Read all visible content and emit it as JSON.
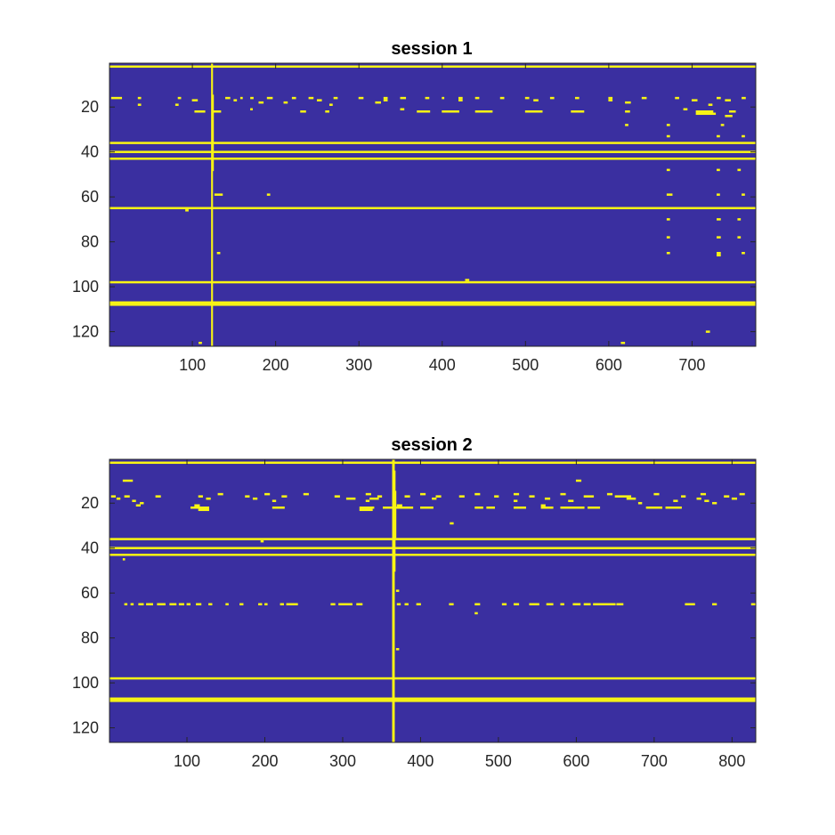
{
  "colors": {
    "background": "#3a2fa0",
    "active": "#f9f514",
    "axis": "#262626",
    "figure": "#ffffff"
  },
  "chart_data": [
    {
      "type": "heatmap",
      "title": "session 1",
      "xlabel": "",
      "ylabel": "",
      "xlim": [
        1,
        776
      ],
      "ylim": [
        1,
        126
      ],
      "y_reversed": true,
      "grid": false,
      "xticks": [
        100,
        200,
        300,
        400,
        500,
        600,
        700
      ],
      "yticks": [
        20,
        40,
        60,
        80,
        100,
        120
      ],
      "colormap": [
        "#3a2fa0",
        "#f9f514"
      ],
      "rows_full": [
        2,
        36,
        40,
        43,
        65,
        98,
        107,
        108
      ],
      "cols_full": [
        123,
        124
      ],
      "col_spans": [
        {
          "x": 125,
          "y": [
            15,
            48
          ]
        }
      ],
      "row_segments": [
        {
          "y": 16,
          "x": [
            [
              3,
              15
            ],
            [
              35,
              38
            ],
            [
              83,
              86
            ],
            [
              140,
              145
            ],
            [
              158,
              160
            ],
            [
              170,
              173
            ],
            [
              190,
              196
            ],
            [
              220,
              224
            ],
            [
              240,
              245
            ],
            [
              270,
              274
            ],
            [
              300,
              305
            ],
            [
              330,
              334
            ],
            [
              350,
              356
            ],
            [
              380,
              384
            ],
            [
              400,
              402
            ],
            [
              420,
              424
            ],
            [
              440,
              444
            ],
            [
              470,
              474
            ],
            [
              500,
              504
            ],
            [
              530,
              534
            ],
            [
              560,
              564
            ],
            [
              600,
              604
            ],
            [
              640,
              645
            ],
            [
              680,
              684
            ],
            [
              730,
              734
            ],
            [
              760,
              764
            ]
          ]
        },
        {
          "y": 17,
          "x": [
            [
              100,
              106
            ],
            [
              150,
              153
            ],
            [
              250,
              255
            ],
            [
              330,
              334
            ],
            [
              420,
              424
            ],
            [
              510,
              515
            ],
            [
              600,
              604
            ],
            [
              700,
              706
            ],
            [
              740,
              746
            ]
          ]
        },
        {
          "y": 18,
          "x": [
            [
              180,
              185
            ],
            [
              210,
              214
            ],
            [
              320,
              326
            ],
            [
              620,
              626
            ]
          ]
        },
        {
          "y": 19,
          "x": [
            [
              35,
              38
            ],
            [
              80,
              83
            ],
            [
              265,
              268
            ],
            [
              720,
              724
            ]
          ]
        },
        {
          "y": 21,
          "x": [
            [
              170,
              172
            ],
            [
              350,
              354
            ],
            [
              690,
              694
            ]
          ]
        },
        {
          "y": 22,
          "x": [
            [
              103,
              115
            ],
            [
              126,
              134
            ],
            [
              230,
              236
            ],
            [
              260,
              264
            ],
            [
              370,
              385
            ],
            [
              400,
              420
            ],
            [
              440,
              460
            ],
            [
              500,
              520
            ],
            [
              555,
              570
            ],
            [
              620,
              625
            ],
            [
              705,
              725
            ],
            [
              745,
              752
            ]
          ]
        },
        {
          "y": 23,
          "x": [
            [
              705,
              728
            ]
          ]
        },
        {
          "y": 24,
          "x": [
            [
              740,
              748
            ]
          ]
        },
        {
          "y": 28,
          "x": [
            [
              620,
              623
            ],
            [
              670,
              673
            ],
            [
              735,
              738
            ]
          ]
        },
        {
          "y": 33,
          "x": [
            [
              670,
              673
            ],
            [
              730,
              733
            ],
            [
              760,
              763
            ]
          ]
        },
        {
          "y": 48,
          "x": [
            [
              670,
              673
            ],
            [
              730,
              733
            ],
            [
              755,
              758
            ]
          ]
        },
        {
          "y": 59,
          "x": [
            [
              127,
              136
            ],
            [
              190,
              193
            ],
            [
              670,
              676
            ],
            [
              730,
              733
            ],
            [
              760,
              763
            ]
          ]
        },
        {
          "y": 66,
          "x": [
            [
              92,
              95
            ]
          ]
        },
        {
          "y": 70,
          "x": [
            [
              670,
              673
            ],
            [
              730,
              734
            ],
            [
              755,
              758
            ]
          ]
        },
        {
          "y": 78,
          "x": [
            [
              670,
              673
            ],
            [
              730,
              734
            ],
            [
              755,
              758
            ]
          ]
        },
        {
          "y": 85,
          "x": [
            [
              130,
              133
            ],
            [
              670,
              673
            ],
            [
              730,
              734
            ],
            [
              760,
              763
            ]
          ]
        },
        {
          "y": 86,
          "x": [
            [
              730,
              734
            ]
          ]
        },
        {
          "y": 97,
          "x": [
            [
              428,
              432
            ]
          ]
        },
        {
          "y": 120,
          "x": [
            [
              717,
              721
            ]
          ]
        },
        {
          "y": 125,
          "x": [
            [
              108,
              111
            ],
            [
              615,
              619
            ]
          ]
        }
      ]
    },
    {
      "type": "heatmap",
      "title": "session 2",
      "xlabel": "",
      "ylabel": "",
      "xlim": [
        1,
        830
      ],
      "ylim": [
        1,
        126
      ],
      "y_reversed": true,
      "grid": false,
      "xticks": [
        100,
        200,
        300,
        400,
        500,
        600,
        700,
        800
      ],
      "yticks": [
        20,
        40,
        60,
        80,
        100,
        120
      ],
      "colormap": [
        "#3a2fa0",
        "#f9f514"
      ],
      "rows_full": [
        2,
        36,
        40,
        43,
        98,
        107,
        108
      ],
      "cols_full": [
        364,
        365,
        366
      ],
      "col_spans": [
        {
          "x": 367,
          "y": [
            6,
            50
          ]
        },
        {
          "x": 368,
          "y": [
            15,
            35
          ]
        }
      ],
      "row_segments": [
        {
          "y": 10,
          "x": [
            [
              18,
              30
            ],
            [
              600,
              606
            ]
          ]
        },
        {
          "y": 16,
          "x": [
            [
              140,
              146
            ],
            [
              200,
              206
            ],
            [
              250,
              256
            ],
            [
              330,
              336
            ],
            [
              400,
              406
            ],
            [
              470,
              476
            ],
            [
              520,
              526
            ],
            [
              580,
              586
            ],
            [
              640,
              646
            ],
            [
              700,
              706
            ],
            [
              760,
              766
            ],
            [
              810,
              816
            ]
          ]
        },
        {
          "y": 17,
          "x": [
            [
              3,
              8
            ],
            [
              20,
              26
            ],
            [
              60,
              66
            ],
            [
              115,
              120
            ],
            [
              175,
              180
            ],
            [
              222,
              228
            ],
            [
              290,
              296
            ],
            [
              345,
              350
            ],
            [
              380,
              386
            ],
            [
              420,
              426
            ],
            [
              450,
              456
            ],
            [
              495,
              500
            ],
            [
              540,
              546
            ],
            [
              610,
              622
            ],
            [
              650,
              670
            ],
            [
              735,
              740
            ],
            [
              790,
              796
            ]
          ]
        },
        {
          "y": 18,
          "x": [
            [
              10,
              14
            ],
            [
              125,
              130
            ],
            [
              185,
              190
            ],
            [
              305,
              316
            ],
            [
              335,
              346
            ],
            [
              415,
              420
            ],
            [
              560,
              566
            ],
            [
              665,
              676
            ],
            [
              755,
              760
            ],
            [
              800,
              806
            ]
          ]
        },
        {
          "y": 19,
          "x": [
            [
              30,
              34
            ],
            [
              210,
              214
            ],
            [
              330,
              334
            ],
            [
              520,
              524
            ],
            [
              590,
              596
            ],
            [
              725,
              730
            ],
            [
              765,
              770
            ]
          ]
        },
        {
          "y": 20,
          "x": [
            [
              40,
              44
            ],
            [
              680,
              684
            ],
            [
              775,
              780
            ]
          ]
        },
        {
          "y": 21,
          "x": [
            [
              35,
              40
            ],
            [
              110,
              116
            ],
            [
              370,
              376
            ],
            [
              555,
              560
            ]
          ]
        },
        {
          "y": 22,
          "x": [
            [
              105,
              128
            ],
            [
              210,
              225
            ],
            [
              322,
              340
            ],
            [
              352,
              390
            ],
            [
              400,
              416
            ],
            [
              470,
              480
            ],
            [
              485,
              495
            ],
            [
              520,
              535
            ],
            [
              555,
              570
            ],
            [
              580,
              610
            ],
            [
              615,
              630
            ],
            [
              690,
              710
            ],
            [
              715,
              735
            ]
          ]
        },
        {
          "y": 23,
          "x": [
            [
              115,
              128
            ],
            [
              322,
              338
            ]
          ]
        },
        {
          "y": 29,
          "x": [
            [
              438,
              442
            ]
          ]
        },
        {
          "y": 37,
          "x": [
            [
              195,
              198
            ]
          ]
        },
        {
          "y": 45,
          "x": [
            [
              18,
              20
            ]
          ]
        },
        {
          "y": 59,
          "x": [
            [
              369,
              372
            ]
          ]
        },
        {
          "y": 65,
          "x": [
            [
              20,
              23
            ],
            [
              28,
              31
            ],
            [
              38,
              44
            ],
            [
              48,
              56
            ],
            [
              62,
              72
            ],
            [
              78,
              86
            ],
            [
              90,
              96
            ],
            [
              100,
              104
            ],
            [
              112,
              118
            ],
            [
              128,
              132
            ],
            [
              150,
              153
            ],
            [
              168,
              172
            ],
            [
              192,
              196
            ],
            [
              200,
              203
            ],
            [
              220,
              224
            ],
            [
              228,
              242
            ],
            [
              285,
              290
            ],
            [
              295,
              312
            ],
            [
              318,
              325
            ],
            [
              370,
              374
            ],
            [
              380,
              384
            ],
            [
              395,
              400
            ],
            [
              437,
              442
            ],
            [
              470,
              476
            ],
            [
              505,
              510
            ],
            [
              520,
              526
            ],
            [
              540,
              552
            ],
            [
              562,
              570
            ],
            [
              580,
              584
            ],
            [
              596,
              605
            ],
            [
              610,
              618
            ],
            [
              622,
              650
            ],
            [
              652,
              660
            ],
            [
              740,
              752
            ],
            [
              775,
              780
            ],
            [
              825,
              830
            ]
          ]
        },
        {
          "y": 69,
          "x": [
            [
              470,
              473
            ]
          ]
        },
        {
          "y": 85,
          "x": [
            [
              369,
              372
            ]
          ]
        }
      ]
    }
  ]
}
